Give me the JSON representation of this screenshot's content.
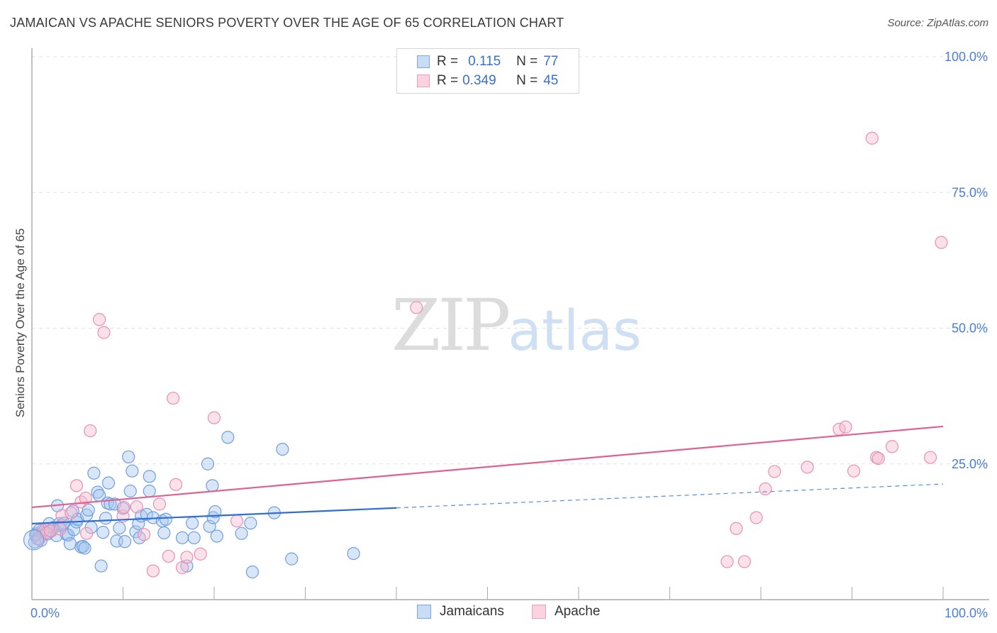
{
  "header": {
    "title": "JAMAICAN VS APACHE SENIORS POVERTY OVER THE AGE OF 65 CORRELATION CHART",
    "source": "Source: ZipAtlas.com"
  },
  "watermark": {
    "part1": "ZIP",
    "part2": "atlas"
  },
  "legend": {
    "rows": [
      {
        "r_label": "R =",
        "r_value": "0.115",
        "n_label": "N =",
        "n_value": "77",
        "color": "#a9c7ef"
      },
      {
        "r_label": "R =",
        "r_value": "0.349",
        "n_label": "N =",
        "n_value": "45",
        "color": "#f5bcd0"
      }
    ]
  },
  "bottom_legend": {
    "items": [
      {
        "label": "Jamaicans",
        "color": "#a9c7ef"
      },
      {
        "label": "Apache",
        "color": "#f5bcd0"
      }
    ]
  },
  "chart_data": {
    "type": "scatter",
    "title": "JAMAICAN VS APACHE SENIORS POVERTY OVER THE AGE OF 65 CORRELATION CHART",
    "xlabel": "",
    "ylabel": "Seniors Poverty Over the Age of 65",
    "xlim": [
      0,
      100
    ],
    "ylim": [
      0,
      100
    ],
    "x_tick_labels": [
      "0.0%",
      "100.0%"
    ],
    "y_ticks": [
      25,
      50,
      75,
      100
    ],
    "y_tick_labels": [
      "25.0%",
      "50.0%",
      "75.0%",
      "100.0%"
    ],
    "grid": true,
    "series": [
      {
        "name": "Jamaicans",
        "color": "#6f9fe0",
        "fill": "#a9c7ef",
        "trend": {
          "x0": 0,
          "y0": 14.0,
          "x1": 40,
          "y1": 16.9,
          "dash_x1": 100,
          "dash_y1": 21.3,
          "color": "#2f6fd0"
        },
        "points": [
          [
            0.5,
            12.2
          ],
          [
            0.6,
            11.2
          ],
          [
            0.8,
            12.8
          ],
          [
            1.0,
            10.9
          ],
          [
            1.2,
            12.4
          ],
          [
            1.5,
            13.0
          ],
          [
            1.7,
            12.1
          ],
          [
            1.9,
            14.0
          ],
          [
            2.1,
            12.6
          ],
          [
            2.4,
            13.3
          ],
          [
            2.7,
            11.8
          ],
          [
            2.8,
            17.3
          ],
          [
            3.0,
            14.0
          ],
          [
            3.2,
            13.6
          ],
          [
            3.4,
            13.8
          ],
          [
            3.5,
            14.1
          ],
          [
            3.8,
            12.0
          ],
          [
            4.0,
            11.9
          ],
          [
            4.2,
            10.3
          ],
          [
            4.5,
            16.3
          ],
          [
            4.6,
            12.9
          ],
          [
            4.9,
            14.3
          ],
          [
            5.0,
            14.8
          ],
          [
            5.4,
            9.7
          ],
          [
            5.6,
            9.8
          ],
          [
            5.8,
            9.5
          ],
          [
            6.0,
            15.6
          ],
          [
            6.2,
            16.5
          ],
          [
            6.5,
            13.3
          ],
          [
            6.8,
            23.3
          ],
          [
            7.2,
            19.8
          ],
          [
            7.4,
            19.2
          ],
          [
            7.6,
            6.2
          ],
          [
            7.8,
            12.4
          ],
          [
            8.1,
            15.0
          ],
          [
            8.3,
            17.8
          ],
          [
            8.4,
            21.5
          ],
          [
            8.6,
            17.6
          ],
          [
            9.1,
            17.6
          ],
          [
            9.3,
            10.8
          ],
          [
            9.6,
            13.2
          ],
          [
            10.0,
            16.8
          ],
          [
            10.2,
            10.7
          ],
          [
            10.6,
            26.3
          ],
          [
            10.8,
            20.0
          ],
          [
            11.0,
            23.7
          ],
          [
            11.4,
            12.5
          ],
          [
            11.7,
            14.0
          ],
          [
            11.8,
            11.4
          ],
          [
            12.0,
            15.4
          ],
          [
            12.6,
            15.7
          ],
          [
            12.9,
            20.0
          ],
          [
            12.9,
            22.7
          ],
          [
            13.3,
            15.1
          ],
          [
            14.3,
            14.5
          ],
          [
            14.5,
            12.3
          ],
          [
            14.7,
            14.8
          ],
          [
            16.5,
            11.4
          ],
          [
            17.0,
            6.2
          ],
          [
            17.6,
            14.1
          ],
          [
            17.8,
            11.4
          ],
          [
            19.3,
            25.0
          ],
          [
            19.5,
            13.5
          ],
          [
            19.8,
            21.0
          ],
          [
            19.9,
            15.1
          ],
          [
            20.1,
            16.2
          ],
          [
            20.3,
            11.7
          ],
          [
            21.5,
            29.9
          ],
          [
            23.0,
            12.2
          ],
          [
            24.0,
            14.1
          ],
          [
            24.2,
            5.1
          ],
          [
            26.6,
            16.0
          ],
          [
            27.5,
            27.7
          ],
          [
            28.5,
            7.5
          ],
          [
            35.3,
            8.5
          ],
          [
            0.3,
            10.6
          ],
          [
            0.4,
            11.9
          ]
        ]
      },
      {
        "name": "Apache",
        "color": "#e890b0",
        "fill": "#f5bcd0",
        "trend": {
          "x0": 0,
          "y0": 17.0,
          "x1": 100,
          "y1": 31.9,
          "color": "#e0608f"
        },
        "points": [
          [
            0.8,
            11.2
          ],
          [
            1.2,
            12.8
          ],
          [
            1.6,
            12.3
          ],
          [
            2.0,
            12.7
          ],
          [
            3.1,
            13.0
          ],
          [
            3.3,
            15.5
          ],
          [
            4.3,
            16.0
          ],
          [
            4.9,
            21.0
          ],
          [
            5.4,
            18.0
          ],
          [
            5.9,
            18.7
          ],
          [
            6.0,
            12.2
          ],
          [
            6.4,
            31.1
          ],
          [
            7.4,
            51.6
          ],
          [
            7.9,
            49.2
          ],
          [
            10.0,
            15.4
          ],
          [
            10.1,
            17.0
          ],
          [
            11.5,
            17.1
          ],
          [
            12.3,
            12.0
          ],
          [
            13.3,
            5.3
          ],
          [
            14.0,
            17.6
          ],
          [
            15.0,
            8.0
          ],
          [
            15.5,
            37.1
          ],
          [
            15.8,
            21.2
          ],
          [
            16.5,
            5.9
          ],
          [
            17.0,
            7.8
          ],
          [
            18.5,
            8.4
          ],
          [
            20.0,
            33.5
          ],
          [
            22.5,
            14.5
          ],
          [
            42.2,
            53.8
          ],
          [
            76.3,
            7.0
          ],
          [
            77.3,
            13.1
          ],
          [
            78.2,
            7.0
          ],
          [
            79.5,
            15.1
          ],
          [
            80.5,
            20.4
          ],
          [
            81.5,
            23.6
          ],
          [
            85.1,
            24.4
          ],
          [
            88.6,
            31.4
          ],
          [
            89.3,
            31.8
          ],
          [
            90.2,
            23.7
          ],
          [
            92.7,
            26.2
          ],
          [
            92.9,
            26.0
          ],
          [
            94.4,
            28.2
          ],
          [
            92.2,
            85.0
          ],
          [
            98.6,
            26.2
          ],
          [
            99.8,
            65.8
          ]
        ]
      }
    ]
  }
}
